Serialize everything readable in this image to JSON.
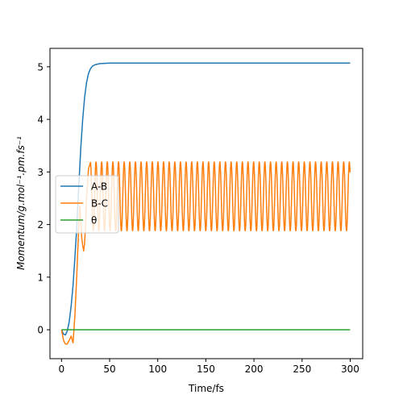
{
  "chart_data": {
    "type": "line",
    "title": "",
    "xlabel": "Time/fs",
    "ylabel": "Momentum/g.mol⁻¹.pm.fs⁻¹",
    "xlim": [
      -12,
      313
    ],
    "ylim": [
      -0.55,
      5.35
    ],
    "x_ticks": [
      0,
      50,
      100,
      150,
      200,
      250,
      300
    ],
    "y_ticks": [
      0,
      1,
      2,
      3,
      4,
      5
    ],
    "legend_position": "center-left",
    "grid": false,
    "series": [
      {
        "name": "A-B",
        "color": "#1f77b4",
        "x": [
          0,
          2,
          4,
          6,
          8,
          10,
          12,
          14,
          16,
          18,
          20,
          22,
          24,
          26,
          28,
          30,
          32,
          35,
          40,
          45,
          50,
          60,
          80,
          100,
          150,
          200,
          250,
          300
        ],
        "y": [
          0,
          -0.08,
          -0.1,
          -0.02,
          0.15,
          0.45,
          0.85,
          1.4,
          2.0,
          2.75,
          3.45,
          4.0,
          4.42,
          4.7,
          4.87,
          4.96,
          5.01,
          5.04,
          5.06,
          5.065,
          5.07,
          5.07,
          5.07,
          5.07,
          5.07,
          5.07,
          5.07,
          5.07
        ]
      },
      {
        "name": "B-C",
        "color": "#ff7f0e",
        "x": [
          0,
          2,
          4,
          6,
          8,
          10,
          12,
          14,
          16,
          18,
          19,
          20,
          21,
          22,
          23,
          24,
          25,
          26,
          28,
          30
        ],
        "y": [
          0,
          -0.2,
          -0.27,
          -0.27,
          -0.2,
          -0.12,
          -0.25,
          0.3,
          1.1,
          2.0,
          2.35,
          2.1,
          1.75,
          1.6,
          1.5,
          1.65,
          2.0,
          2.5,
          3.05,
          3.18
        ],
        "oscillation": {
          "from": 30,
          "to": 300,
          "min": 1.88,
          "max": 3.19,
          "period": 5.85
        }
      },
      {
        "name": "θ",
        "color": "#2ca02c",
        "x": [
          0,
          300
        ],
        "y": [
          0,
          0
        ]
      }
    ]
  }
}
